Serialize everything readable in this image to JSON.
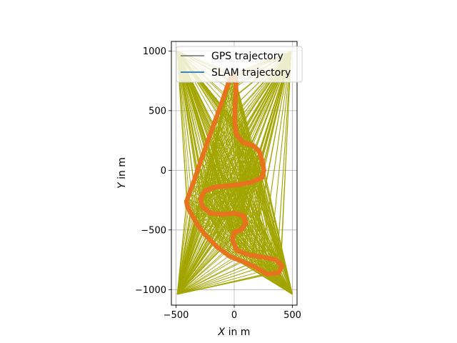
{
  "chart_data": {
    "type": "line",
    "title": "",
    "xlabel_var": "X",
    "xlabel_rest": " in m",
    "ylabel_var": "Y",
    "ylabel_rest": " in m",
    "xlim": [
      -540,
      540
    ],
    "ylim": [
      -1130,
      1080
    ],
    "xticks": [
      -500,
      0,
      500
    ],
    "yticks": [
      -1000,
      -500,
      0,
      500,
      1000
    ],
    "x_tick_labels": [
      "−500",
      "0",
      "500"
    ],
    "y_tick_labels": [
      "−1000",
      "−500",
      "0",
      "500",
      "1000"
    ],
    "grid": true,
    "legend": {
      "placement": "upper-right",
      "entries": [
        {
          "label": "GPS trajectory",
          "color": "#808080"
        },
        {
          "label": "SLAM trajectory",
          "color": "#1f77b4"
        }
      ]
    },
    "colors": {
      "gps": "#808080",
      "slam": "#1f77b4",
      "correspondence_lines": "#a3a500",
      "marker_overlay": "#e8731f"
    },
    "corner_anchors": [
      {
        "x": -490,
        "y": 1000
      },
      {
        "x": 490,
        "y": 1000
      },
      {
        "x": -490,
        "y": -1040
      },
      {
        "x": 500,
        "y": -1040
      }
    ],
    "track": [
      {
        "x": -10,
        "y": 810
      },
      {
        "x": 15,
        "y": 760
      },
      {
        "x": 15,
        "y": 640
      },
      {
        "x": 5,
        "y": 520
      },
      {
        "x": 5,
        "y": 400
      },
      {
        "x": 20,
        "y": 300
      },
      {
        "x": 80,
        "y": 230
      },
      {
        "x": 160,
        "y": 210
      },
      {
        "x": 215,
        "y": 160
      },
      {
        "x": 240,
        "y": 80
      },
      {
        "x": 255,
        "y": 0
      },
      {
        "x": 240,
        "y": -60
      },
      {
        "x": 150,
        "y": -100
      },
      {
        "x": 40,
        "y": -120
      },
      {
        "x": -60,
        "y": -130
      },
      {
        "x": -160,
        "y": -140
      },
      {
        "x": -250,
        "y": -170
      },
      {
        "x": -290,
        "y": -240
      },
      {
        "x": -270,
        "y": -310
      },
      {
        "x": -200,
        "y": -360
      },
      {
        "x": -100,
        "y": -370
      },
      {
        "x": 0,
        "y": -360
      },
      {
        "x": 80,
        "y": -380
      },
      {
        "x": 100,
        "y": -440
      },
      {
        "x": 60,
        "y": -500
      },
      {
        "x": 0,
        "y": -520
      },
      {
        "x": -15,
        "y": -580
      },
      {
        "x": 20,
        "y": -670
      },
      {
        "x": 130,
        "y": -710
      },
      {
        "x": 260,
        "y": -730
      },
      {
        "x": 360,
        "y": -750
      },
      {
        "x": 410,
        "y": -800
      },
      {
        "x": 380,
        "y": -860
      },
      {
        "x": 280,
        "y": -870
      },
      {
        "x": 160,
        "y": -800
      },
      {
        "x": 60,
        "y": -760
      },
      {
        "x": -40,
        "y": -720
      },
      {
        "x": -150,
        "y": -640
      },
      {
        "x": -250,
        "y": -540
      },
      {
        "x": -320,
        "y": -450
      },
      {
        "x": -400,
        "y": -310
      },
      {
        "x": -410,
        "y": -260
      },
      {
        "x": -350,
        "y": -100
      },
      {
        "x": -280,
        "y": 100
      },
      {
        "x": -200,
        "y": 320
      },
      {
        "x": -110,
        "y": 560
      },
      {
        "x": -40,
        "y": 760
      },
      {
        "x": -10,
        "y": 810
      }
    ]
  }
}
